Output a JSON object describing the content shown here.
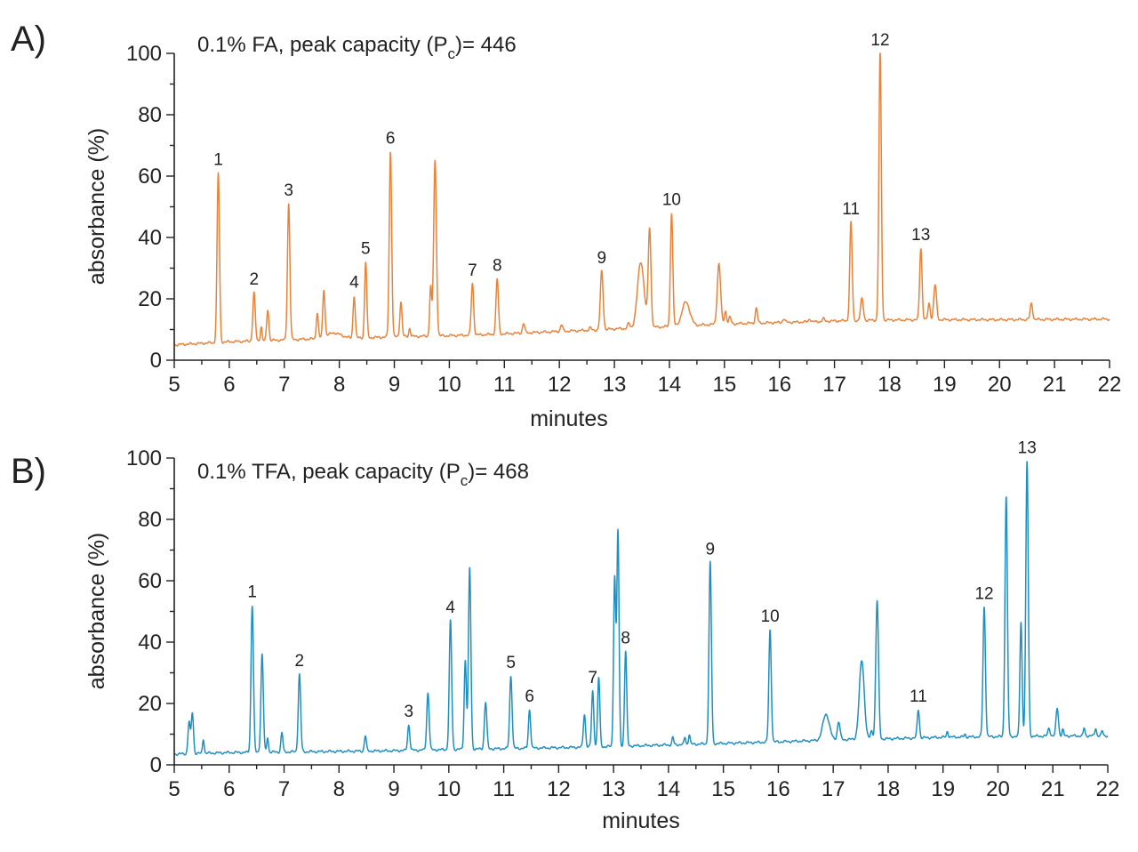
{
  "chart_data": [
    {
      "type": "line",
      "panel": "A)",
      "annotation": {
        "text": "0.1% FA, peak capacity (P",
        "sub": "c",
        "tail": ")= 446"
      },
      "xlabel": "minutes",
      "ylabel": "absorbance (%)",
      "xlim": [
        5,
        22
      ],
      "ylim": [
        0,
        100
      ],
      "xticks": [
        5,
        6,
        7,
        8,
        9,
        10,
        11,
        12,
        13,
        14,
        15,
        16,
        17,
        18,
        19,
        20,
        21,
        22
      ],
      "yticks": [
        0,
        20,
        40,
        60,
        80,
        100
      ],
      "grid": false,
      "color": "#e8833a",
      "baseline": [
        [
          5,
          5
        ],
        [
          5.5,
          5.5
        ],
        [
          6,
          6
        ],
        [
          6.5,
          6.3
        ],
        [
          7,
          6.6
        ],
        [
          7.6,
          7
        ],
        [
          7.9,
          9
        ],
        [
          8.2,
          7.2
        ],
        [
          8.6,
          7.4
        ],
        [
          9,
          7.6
        ],
        [
          9.5,
          7.8
        ],
        [
          10,
          8
        ],
        [
          10.6,
          8.3
        ],
        [
          11,
          8.6
        ],
        [
          11.5,
          9
        ],
        [
          12,
          9.4
        ],
        [
          12.6,
          9.8
        ],
        [
          13,
          10.2
        ],
        [
          13.6,
          10.6
        ],
        [
          14,
          11
        ],
        [
          14.6,
          11.5
        ],
        [
          15,
          11.8
        ],
        [
          15.6,
          12.1
        ],
        [
          16,
          12.3
        ],
        [
          16.6,
          12.5
        ],
        [
          17,
          12.8
        ],
        [
          17.6,
          13
        ],
        [
          18,
          13.1
        ],
        [
          19,
          13.2
        ],
        [
          20,
          13.2
        ],
        [
          21,
          13.3
        ],
        [
          22,
          13.4
        ]
      ],
      "peaks": [
        {
          "x": 5.8,
          "h": 61,
          "w": 0.022
        },
        {
          "x": 6.45,
          "h": 22,
          "w": 0.022
        },
        {
          "x": 6.58,
          "h": 11,
          "w": 0.015
        },
        {
          "x": 6.7,
          "h": 16.5,
          "w": 0.02
        },
        {
          "x": 7.08,
          "h": 51,
          "w": 0.022
        },
        {
          "x": 7.6,
          "h": 15.5,
          "w": 0.018
        },
        {
          "x": 7.72,
          "h": 23,
          "w": 0.02
        },
        {
          "x": 8.27,
          "h": 21,
          "w": 0.02
        },
        {
          "x": 8.48,
          "h": 32,
          "w": 0.02
        },
        {
          "x": 8.93,
          "h": 68,
          "w": 0.022
        },
        {
          "x": 9.12,
          "h": 19,
          "w": 0.02
        },
        {
          "x": 9.28,
          "h": 10.5,
          "w": 0.015
        },
        {
          "x": 9.66,
          "h": 24,
          "w": 0.018
        },
        {
          "x": 9.74,
          "h": 65,
          "w": 0.025
        },
        {
          "x": 10.42,
          "h": 25,
          "w": 0.022
        },
        {
          "x": 10.87,
          "h": 26.5,
          "w": 0.022
        },
        {
          "x": 11.35,
          "h": 12,
          "w": 0.02
        },
        {
          "x": 12.04,
          "h": 11.5,
          "w": 0.02
        },
        {
          "x": 12.56,
          "h": 10.5,
          "w": 0.02
        },
        {
          "x": 12.77,
          "h": 29,
          "w": 0.025
        },
        {
          "x": 13.26,
          "h": 12,
          "w": 0.02
        },
        {
          "x": 13.48,
          "h": 32,
          "w": 0.06
        },
        {
          "x": 13.64,
          "h": 42.5,
          "w": 0.025
        },
        {
          "x": 14.04,
          "h": 48,
          "w": 0.022
        },
        {
          "x": 14.3,
          "h": 19,
          "w": 0.07
        },
        {
          "x": 14.9,
          "h": 31.5,
          "w": 0.03
        },
        {
          "x": 15.02,
          "h": 16,
          "w": 0.02
        },
        {
          "x": 15.1,
          "h": 14,
          "w": 0.02
        },
        {
          "x": 15.58,
          "h": 17,
          "w": 0.02
        },
        {
          "x": 16.08,
          "h": 13.5,
          "w": 0.02
        },
        {
          "x": 16.55,
          "h": 13.5,
          "w": 0.02
        },
        {
          "x": 16.8,
          "h": 13.5,
          "w": 0.02
        },
        {
          "x": 17.3,
          "h": 45,
          "w": 0.022
        },
        {
          "x": 17.5,
          "h": 20,
          "w": 0.025
        },
        {
          "x": 17.83,
          "h": 100,
          "w": 0.022
        },
        {
          "x": 18.57,
          "h": 36.5,
          "w": 0.022
        },
        {
          "x": 18.72,
          "h": 18.5,
          "w": 0.02
        },
        {
          "x": 18.83,
          "h": 24.5,
          "w": 0.025
        },
        {
          "x": 20.58,
          "h": 18.5,
          "w": 0.022
        }
      ],
      "peak_labels": [
        {
          "label": "1",
          "x": 5.8,
          "y": 61
        },
        {
          "label": "2",
          "x": 6.45,
          "y": 22
        },
        {
          "label": "3",
          "x": 7.08,
          "y": 51
        },
        {
          "label": "4",
          "x": 8.27,
          "y": 21
        },
        {
          "label": "5",
          "x": 8.48,
          "y": 32
        },
        {
          "label": "6",
          "x": 8.93,
          "y": 68
        },
        {
          "label": "7",
          "x": 10.42,
          "y": 25
        },
        {
          "label": "8",
          "x": 10.87,
          "y": 26.5
        },
        {
          "label": "9",
          "x": 12.77,
          "y": 29
        },
        {
          "label": "10",
          "x": 14.04,
          "y": 48
        },
        {
          "label": "11",
          "x": 17.3,
          "y": 45
        },
        {
          "label": "12",
          "x": 17.83,
          "y": 100
        },
        {
          "label": "13",
          "x": 18.57,
          "y": 36.5
        }
      ]
    },
    {
      "type": "line",
      "panel": "B)",
      "annotation": {
        "text": "0.1% TFA, peak capacity (P",
        "sub": "c",
        "tail": ")= 468"
      },
      "xlabel": "minutes",
      "ylabel": "absorbance (%)",
      "xlim": [
        5,
        22
      ],
      "ylim": [
        0,
        100
      ],
      "xticks": [
        5,
        6,
        7,
        8,
        9,
        10,
        11,
        12,
        13,
        14,
        15,
        16,
        17,
        18,
        19,
        20,
        21,
        22
      ],
      "yticks": [
        0,
        20,
        40,
        60,
        80,
        100
      ],
      "grid": false,
      "color": "#1f8fbf",
      "baseline": [
        [
          5,
          3.5
        ],
        [
          6,
          4
        ],
        [
          7,
          4.2
        ],
        [
          8,
          4.4
        ],
        [
          9,
          4.6
        ],
        [
          10,
          5
        ],
        [
          11,
          5.3
        ],
        [
          12,
          5.6
        ],
        [
          13,
          6
        ],
        [
          14,
          6.5
        ],
        [
          15,
          7
        ],
        [
          16,
          7.5
        ],
        [
          16.8,
          8
        ],
        [
          17.3,
          8.3
        ],
        [
          18,
          8.5
        ],
        [
          19,
          9
        ],
        [
          20,
          9.2
        ],
        [
          21,
          9.4
        ],
        [
          22,
          9.5
        ]
      ],
      "peaks": [
        {
          "x": 5.27,
          "h": 14,
          "w": 0.02
        },
        {
          "x": 5.33,
          "h": 17,
          "w": 0.02
        },
        {
          "x": 5.53,
          "h": 8.5,
          "w": 0.015
        },
        {
          "x": 6.42,
          "h": 52,
          "w": 0.022
        },
        {
          "x": 6.6,
          "h": 36,
          "w": 0.022
        },
        {
          "x": 6.7,
          "h": 9,
          "w": 0.015
        },
        {
          "x": 6.96,
          "h": 10.5,
          "w": 0.018
        },
        {
          "x": 7.28,
          "h": 29.5,
          "w": 0.022
        },
        {
          "x": 8.48,
          "h": 9.5,
          "w": 0.018
        },
        {
          "x": 9.27,
          "h": 13,
          "w": 0.02
        },
        {
          "x": 9.62,
          "h": 23.5,
          "w": 0.022
        },
        {
          "x": 10.03,
          "h": 47,
          "w": 0.022
        },
        {
          "x": 10.3,
          "h": 34,
          "w": 0.02
        },
        {
          "x": 10.38,
          "h": 64,
          "w": 0.022
        },
        {
          "x": 10.67,
          "h": 20.5,
          "w": 0.022
        },
        {
          "x": 11.13,
          "h": 29,
          "w": 0.022
        },
        {
          "x": 11.47,
          "h": 18,
          "w": 0.02
        },
        {
          "x": 12.47,
          "h": 16.5,
          "w": 0.02
        },
        {
          "x": 12.62,
          "h": 24,
          "w": 0.02
        },
        {
          "x": 12.73,
          "h": 28.5,
          "w": 0.02
        },
        {
          "x": 13.02,
          "h": 61,
          "w": 0.02
        },
        {
          "x": 13.08,
          "h": 76,
          "w": 0.02
        },
        {
          "x": 13.22,
          "h": 37,
          "w": 0.02
        },
        {
          "x": 14.08,
          "h": 9,
          "w": 0.015
        },
        {
          "x": 14.3,
          "h": 9,
          "w": 0.015
        },
        {
          "x": 14.38,
          "h": 10,
          "w": 0.015
        },
        {
          "x": 14.76,
          "h": 66,
          "w": 0.022
        },
        {
          "x": 15.85,
          "h": 44,
          "w": 0.022
        },
        {
          "x": 16.87,
          "h": 16.5,
          "w": 0.06
        },
        {
          "x": 17.1,
          "h": 14,
          "w": 0.025
        },
        {
          "x": 17.52,
          "h": 34,
          "w": 0.045
        },
        {
          "x": 17.7,
          "h": 11,
          "w": 0.02
        },
        {
          "x": 17.8,
          "h": 53.5,
          "w": 0.025
        },
        {
          "x": 18.55,
          "h": 18,
          "w": 0.02
        },
        {
          "x": 19.08,
          "h": 11,
          "w": 0.015
        },
        {
          "x": 19.4,
          "h": 10,
          "w": 0.015
        },
        {
          "x": 19.75,
          "h": 51.5,
          "w": 0.022
        },
        {
          "x": 20.15,
          "h": 87.5,
          "w": 0.022
        },
        {
          "x": 20.42,
          "h": 46.5,
          "w": 0.02
        },
        {
          "x": 20.53,
          "h": 99,
          "w": 0.022
        },
        {
          "x": 20.93,
          "h": 12,
          "w": 0.02
        },
        {
          "x": 21.08,
          "h": 18.5,
          "w": 0.022
        },
        {
          "x": 21.18,
          "h": 11.5,
          "w": 0.015
        },
        {
          "x": 21.57,
          "h": 12,
          "w": 0.015
        },
        {
          "x": 21.78,
          "h": 12,
          "w": 0.015
        },
        {
          "x": 21.9,
          "h": 11,
          "w": 0.015
        }
      ],
      "peak_labels": [
        {
          "label": "1",
          "x": 6.42,
          "y": 52
        },
        {
          "label": "2",
          "x": 7.28,
          "y": 29.5
        },
        {
          "label": "3",
          "x": 9.27,
          "y": 13
        },
        {
          "label": "4",
          "x": 10.03,
          "y": 47
        },
        {
          "label": "5",
          "x": 11.13,
          "y": 29
        },
        {
          "label": "6",
          "x": 11.47,
          "y": 18
        },
        {
          "label": "7",
          "x": 12.62,
          "y": 24
        },
        {
          "label": "8",
          "x": 13.22,
          "y": 37
        },
        {
          "label": "9",
          "x": 14.76,
          "y": 66
        },
        {
          "label": "10",
          "x": 15.85,
          "y": 44
        },
        {
          "label": "11",
          "x": 18.55,
          "y": 18
        },
        {
          "label": "12",
          "x": 19.75,
          "y": 51.5
        },
        {
          "label": "13",
          "x": 20.53,
          "y": 99
        }
      ]
    }
  ]
}
